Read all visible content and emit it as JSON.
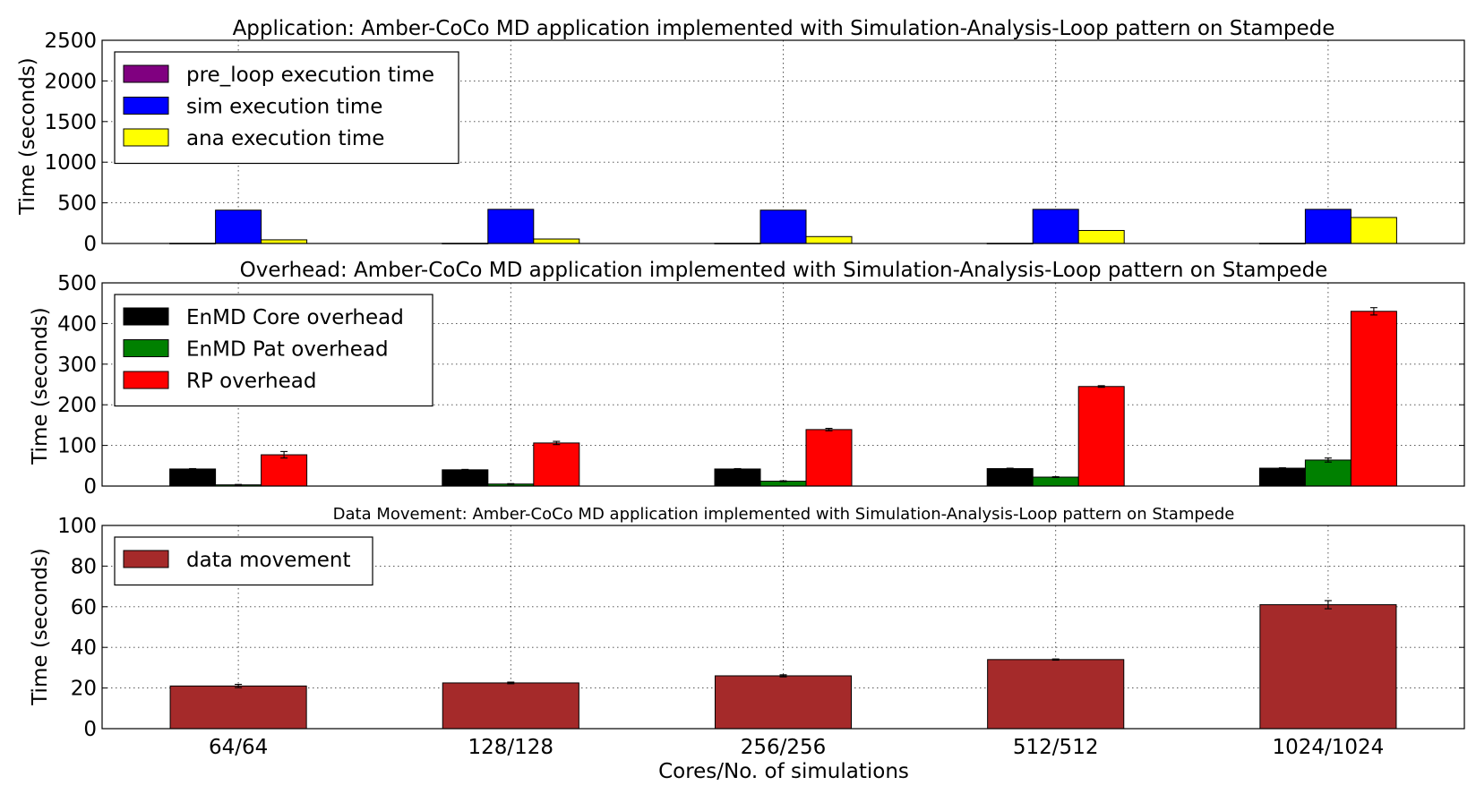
{
  "figure": {
    "xlabel": "Cores/No. of simulations",
    "categories": [
      "64/64",
      "128/128",
      "256/256",
      "512/512",
      "1024/1024"
    ]
  },
  "chart_data": [
    {
      "type": "bar",
      "title": "Application: Amber-CoCo MD application implemented with Simulation-Analysis-Loop pattern on Stampede",
      "ylabel": "Time (seconds)",
      "ylim": [
        0,
        2500
      ],
      "yticks": [
        0,
        500,
        1000,
        1500,
        2000,
        2500
      ],
      "grid": true,
      "legend_placement": "upper-left",
      "categories": [
        "64/64",
        "128/128",
        "256/256",
        "512/512",
        "1024/1024"
      ],
      "series": [
        {
          "name": "pre_loop execution time",
          "color": "#800080",
          "values": [
            2,
            2,
            2,
            2,
            2
          ]
        },
        {
          "name": "sim execution time",
          "color": "#0000ff",
          "values": [
            410,
            420,
            410,
            420,
            420
          ]
        },
        {
          "name": "ana execution time",
          "color": "#ffff00",
          "values": [
            45,
            55,
            85,
            160,
            320
          ]
        }
      ]
    },
    {
      "type": "bar",
      "title": "Overhead: Amber-CoCo MD application implemented with Simulation-Analysis-Loop pattern on Stampede",
      "ylabel": "Time (seconds)",
      "ylim": [
        0,
        500
      ],
      "yticks": [
        0,
        100,
        200,
        300,
        400,
        500
      ],
      "grid": true,
      "legend_placement": "upper-left",
      "categories": [
        "64/64",
        "128/128",
        "256/256",
        "512/512",
        "1024/1024"
      ],
      "series": [
        {
          "name": "EnMD Core overhead",
          "color": "#000000",
          "values": [
            42,
            40,
            42,
            43,
            44
          ],
          "errors": [
            1,
            1,
            1,
            1,
            1
          ]
        },
        {
          "name": "EnMD Pat overhead",
          "color": "#008000",
          "values": [
            3,
            5,
            12,
            22,
            64
          ],
          "errors": [
            1,
            1,
            1,
            1,
            5
          ]
        },
        {
          "name": "RP overhead",
          "color": "#ff0000",
          "values": [
            77,
            106,
            139,
            245,
            430
          ],
          "errors": [
            8,
            4,
            3,
            2,
            9
          ]
        }
      ]
    },
    {
      "type": "bar",
      "title": "Data Movement: Amber-CoCo MD application implemented with Simulation-Analysis-Loop pattern on Stampede",
      "ylabel": "Time (seconds)",
      "ylim": [
        0,
        100
      ],
      "yticks": [
        0,
        20,
        40,
        60,
        80,
        100
      ],
      "grid": true,
      "legend_placement": "upper-left",
      "categories": [
        "64/64",
        "128/128",
        "256/256",
        "512/512",
        "1024/1024"
      ],
      "series": [
        {
          "name": "data movement",
          "color": "#a52a2a",
          "values": [
            21,
            22.5,
            26,
            34,
            61
          ],
          "errors": [
            0.8,
            0.4,
            0.5,
            0.3,
            2
          ]
        }
      ]
    }
  ]
}
